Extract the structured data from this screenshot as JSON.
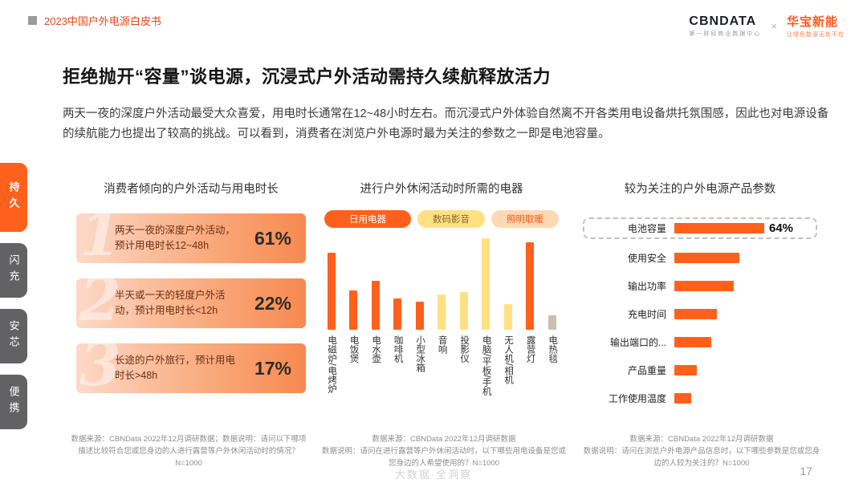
{
  "colors": {
    "primary_orange": "#ff611c",
    "yellow": "#ffe184",
    "peach": "#ffd9b4",
    "tan_gray": "#c9bfae",
    "sidebar_gray": "#626264",
    "header_red": "#e2491c"
  },
  "header": {
    "breadcrumb": "2023中国户外电源白皮书",
    "cbn": {
      "name": "CBNDATA",
      "sub": "第一财经商业数据中心"
    },
    "separator": "×",
    "huabao": {
      "name": "华宝新能",
      "sub": "让绿色能源无处不在"
    }
  },
  "title": "拒绝抛开“容量”谈电源，沉浸式户外活动需持久续航释放活力",
  "paragraph": "两天一夜的深度户外活动最受大众喜爱，用电时长通常在12~48小时左右。而沉浸式户外体验自然离不开各类用电设备烘托氛围感，因此也对电源设备的续航能力也提出了较高的挑战。可以看到，消费者在浏览户外电源时最为关注的参数之一即是电池容量。",
  "sidebar": {
    "tabs": [
      {
        "label": "持久",
        "active": true
      },
      {
        "label": "闪充",
        "active": false
      },
      {
        "label": "安芯",
        "active": false
      },
      {
        "label": "便携",
        "active": false
      }
    ]
  },
  "charts": {
    "activity": {
      "title": "消费者倾向的户外活动与用电时长",
      "cards": [
        {
          "num": "1",
          "text": "两天一夜的深度户外活动，预计用电时长12~48h",
          "percent": "61%"
        },
        {
          "num": "2",
          "text": "半天或一天的轻度户外活动，预计用电时长<12h",
          "percent": "22%"
        },
        {
          "num": "3",
          "text": "长途的户外旅行，预计用电时长>48h",
          "percent": "17%"
        }
      ],
      "note_lines": [
        "数据来源：CBNData 2022年12月调研数据；数据说明：请问以下哪项描述比较符合您或您身边的人进行露营等户外休闲活动时的情况？N=1000"
      ]
    },
    "devices": {
      "title": "进行户外休闲活动时所需的电器",
      "legend": [
        {
          "label": "日用电器",
          "bg": "#ff611c",
          "fg": "#ffffff"
        },
        {
          "label": "数码影音",
          "bg": "#ffe184",
          "fg": "#8a652b"
        },
        {
          "label": "照明取暖",
          "bg": "#ffd9b4",
          "fg": "#e65c1a"
        }
      ],
      "bars": [
        {
          "label": "电磁炉/电烤炉",
          "value": 55,
          "color": "#ff611c"
        },
        {
          "label": "电饭煲",
          "value": 28,
          "color": "#ff611c"
        },
        {
          "label": "电水壶",
          "value": 35,
          "color": "#ff611c"
        },
        {
          "label": "咖啡机",
          "value": 22,
          "color": "#ff611c"
        },
        {
          "label": "小型冰箱",
          "value": 20,
          "color": "#ff611c"
        },
        {
          "label": "音响",
          "value": 25,
          "color": "#ffe184"
        },
        {
          "label": "投影仪",
          "value": 27,
          "color": "#ffe184"
        },
        {
          "label": "电脑/平板/手机",
          "value": 65,
          "color": "#ffe184"
        },
        {
          "label": "无人机/相机",
          "value": 18,
          "color": "#ffe184"
        },
        {
          "label": "露营灯",
          "value": 62,
          "color": "#ff611c"
        },
        {
          "label": "电热毯",
          "value": 10,
          "color": "#c9bfae"
        }
      ],
      "note_lines": [
        "数据来源：CBNData 2022年12月调研数据",
        "数据说明：请问在进行露营等户外休闲活动时，以下哪些用电设备是您或您身边的人希望使用的？N=1000"
      ]
    },
    "params": {
      "title": "较为关注的户外电源产品参数",
      "rows": [
        {
          "label": "电池容量",
          "value": 64,
          "display": "64%",
          "highlight": true
        },
        {
          "label": "使用安全",
          "value": 46
        },
        {
          "label": "输出功率",
          "value": 42
        },
        {
          "label": "充电时间",
          "value": 30
        },
        {
          "label": "输出端口的...",
          "value": 26
        },
        {
          "label": "产品重量",
          "value": 16
        },
        {
          "label": "工作使用温度",
          "value": 12
        }
      ],
      "note_lines": [
        "数据来源：CBNData 2022年12月调研数据",
        "数据说明：请问在浏览户外电源产品信息时，以下哪些参数是您或您身边的人较为关注的？N=1000"
      ]
    }
  },
  "footer": {
    "watermark": "大数据·全洞察",
    "page": "17"
  },
  "chart_data": [
    {
      "type": "bar",
      "title": "消费者倾向的户外活动与用电时长",
      "categories": [
        "两天一夜的深度户外活动，预计用电时长12~48h",
        "半天或一天的轻度户外活动，预计用电时长<12h",
        "长途的户外旅行，预计用电时长>48h"
      ],
      "values": [
        61,
        22,
        17
      ],
      "unit": "percent",
      "orientation": "cards"
    },
    {
      "type": "bar",
      "title": "进行户外休闲活动时所需的电器",
      "legend": [
        "日用电器",
        "数码影音",
        "照明取暖"
      ],
      "categories": [
        "电磁炉/电烤炉",
        "电饭煲",
        "电水壶",
        "咖啡机",
        "小型冰箱",
        "音响",
        "投影仪",
        "电脑/平板/手机",
        "无人机/相机",
        "露营灯",
        "电热毯"
      ],
      "values": [
        55,
        28,
        35,
        22,
        20,
        25,
        27,
        65,
        18,
        62,
        10
      ],
      "unit": "percent_estimated",
      "note": "bars carry no data labels; values estimated from bar heights"
    },
    {
      "type": "bar",
      "title": "较为关注的户外电源产品参数",
      "categories": [
        "电池容量",
        "使用安全",
        "输出功率",
        "充电时间",
        "输出端口的...",
        "产品重量",
        "工作使用温度"
      ],
      "values": [
        64,
        46,
        42,
        30,
        26,
        16,
        12
      ],
      "labeled_values": {
        "电池容量": "64%"
      },
      "unit": "percent",
      "orientation": "horizontal"
    }
  ]
}
